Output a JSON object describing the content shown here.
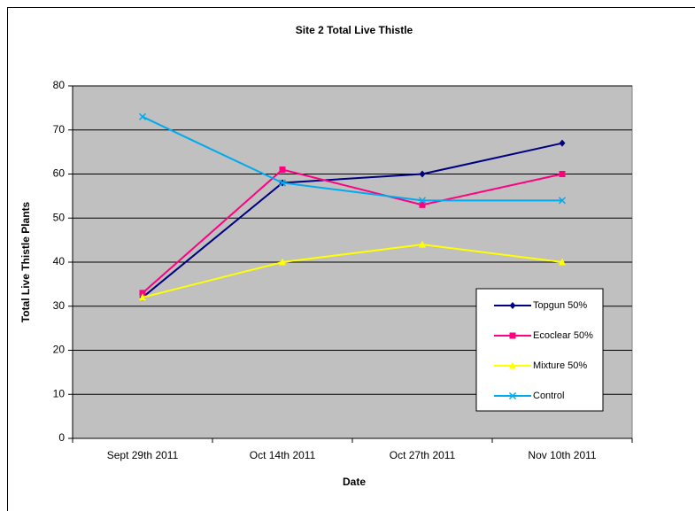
{
  "chart_data": {
    "type": "line",
    "title": "Site 2 Total Live Thistle",
    "xlabel": "Date",
    "ylabel": "Total Live Thistle Plants",
    "categories": [
      "Sept 29th 2011",
      "Oct 14th 2011",
      "Oct 27th 2011",
      "Nov 10th 2011"
    ],
    "series": [
      {
        "name": "Topgun 50%",
        "color": "#000080",
        "marker": "diamond",
        "values": [
          32,
          58,
          60,
          67
        ]
      },
      {
        "name": "Ecoclear 50%",
        "color": "#ff0080",
        "marker": "square",
        "values": [
          33,
          61,
          53,
          60
        ]
      },
      {
        "name": "Mixture 50%",
        "color": "#ffff00",
        "marker": "triangle",
        "values": [
          32,
          40,
          44,
          40
        ]
      },
      {
        "name": "Control",
        "color": "#00aaee",
        "marker": "x",
        "values": [
          73,
          58,
          54,
          54
        ]
      }
    ],
    "ylim": [
      0,
      80
    ],
    "yticks": [
      0,
      10,
      20,
      30,
      40,
      50,
      60,
      70,
      80
    ],
    "grid": true,
    "plot_background": "#c0c0c0",
    "legend_position": "lower right"
  }
}
